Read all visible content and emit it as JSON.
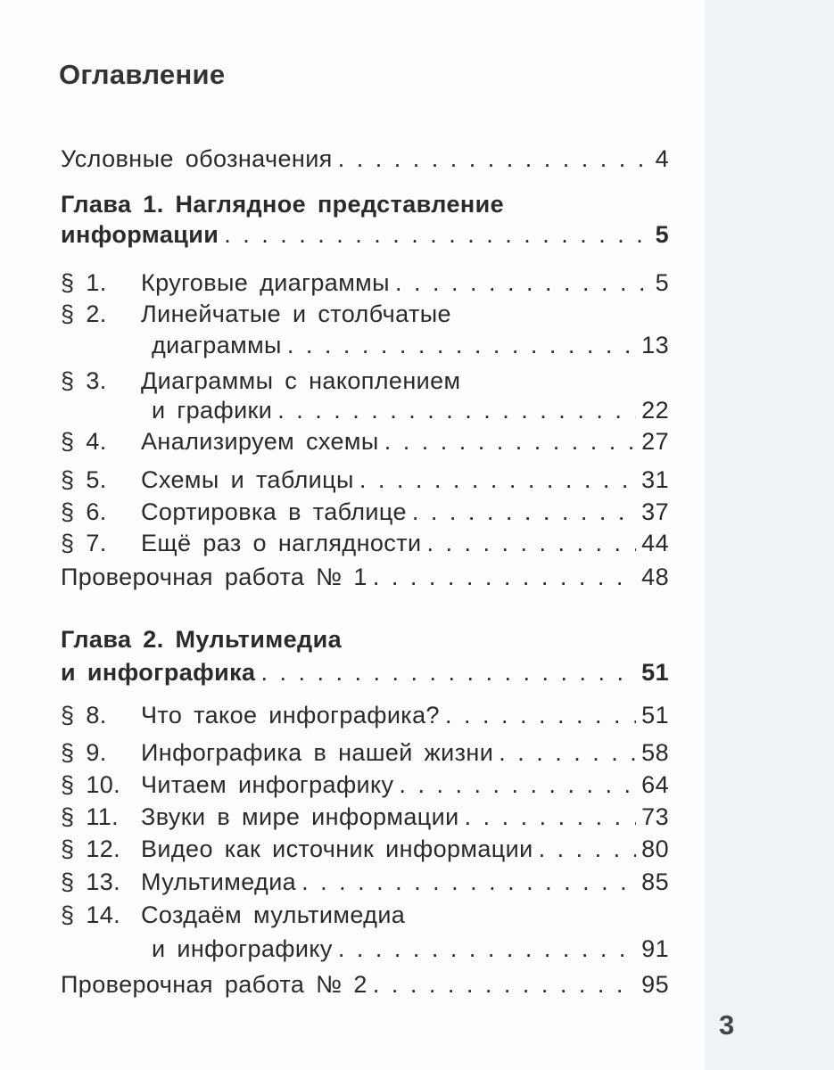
{
  "title": "Оглавление",
  "entries": [
    {
      "num": "",
      "lines": [
        "Условные обозначения"
      ],
      "page": "4",
      "bold": false
    },
    {
      "num": "",
      "lines": [
        "Глава 1. Наглядное представление",
        "информации"
      ],
      "page": "5",
      "bold": true
    },
    {
      "num": "§ 1.",
      "lines": [
        "Круговые диаграммы"
      ],
      "page": "5",
      "bold": false
    },
    {
      "num": "§ 2.",
      "lines": [
        "Линейчатые и столбчатые",
        "диаграммы"
      ],
      "page": "13",
      "bold": false
    },
    {
      "num": "§ 3.",
      "lines": [
        "Диаграммы с накоплением",
        "и графики"
      ],
      "page": "22",
      "bold": false
    },
    {
      "num": "§ 4.",
      "lines": [
        "Анализируем схемы"
      ],
      "page": "27",
      "bold": false
    },
    {
      "num": "§ 5.",
      "lines": [
        "Схемы и таблицы"
      ],
      "page": "31",
      "bold": false
    },
    {
      "num": "§ 6.",
      "lines": [
        "Сортировка в таблице"
      ],
      "page": "37",
      "bold": false
    },
    {
      "num": "§ 7.",
      "lines": [
        "Ещё раз о наглядности"
      ],
      "page": "44",
      "bold": false
    },
    {
      "num": "",
      "lines": [
        "Проверочная работа № 1"
      ],
      "page": "48",
      "bold": false
    },
    {
      "num": "",
      "lines": [
        "Глава 2. Мультимедиа",
        "и инфографика"
      ],
      "page": "51",
      "bold": true
    },
    {
      "num": "§ 8.",
      "lines": [
        "Что такое инфографика?"
      ],
      "page": "51",
      "bold": false
    },
    {
      "num": "§ 9.",
      "lines": [
        "Инфографика в нашей жизни"
      ],
      "page": "58",
      "bold": false
    },
    {
      "num": "§ 10.",
      "lines": [
        "Читаем инфографику"
      ],
      "page": "64",
      "bold": false
    },
    {
      "num": "§ 11.",
      "lines": [
        "Звуки в мире информации"
      ],
      "page": "73",
      "bold": false
    },
    {
      "num": "§ 12.",
      "lines": [
        "Видео как источник информации"
      ],
      "page": "80",
      "bold": false
    },
    {
      "num": "§ 13.",
      "lines": [
        "Мультимедиа"
      ],
      "page": "85",
      "bold": false
    },
    {
      "num": "§ 14.",
      "lines": [
        "Создаём мультимедиа",
        "и инфографику"
      ],
      "page": "91",
      "bold": false
    },
    {
      "num": "",
      "lines": [
        "Проверочная работа № 2"
      ],
      "page": "95",
      "bold": false
    }
  ],
  "page_number": "3"
}
